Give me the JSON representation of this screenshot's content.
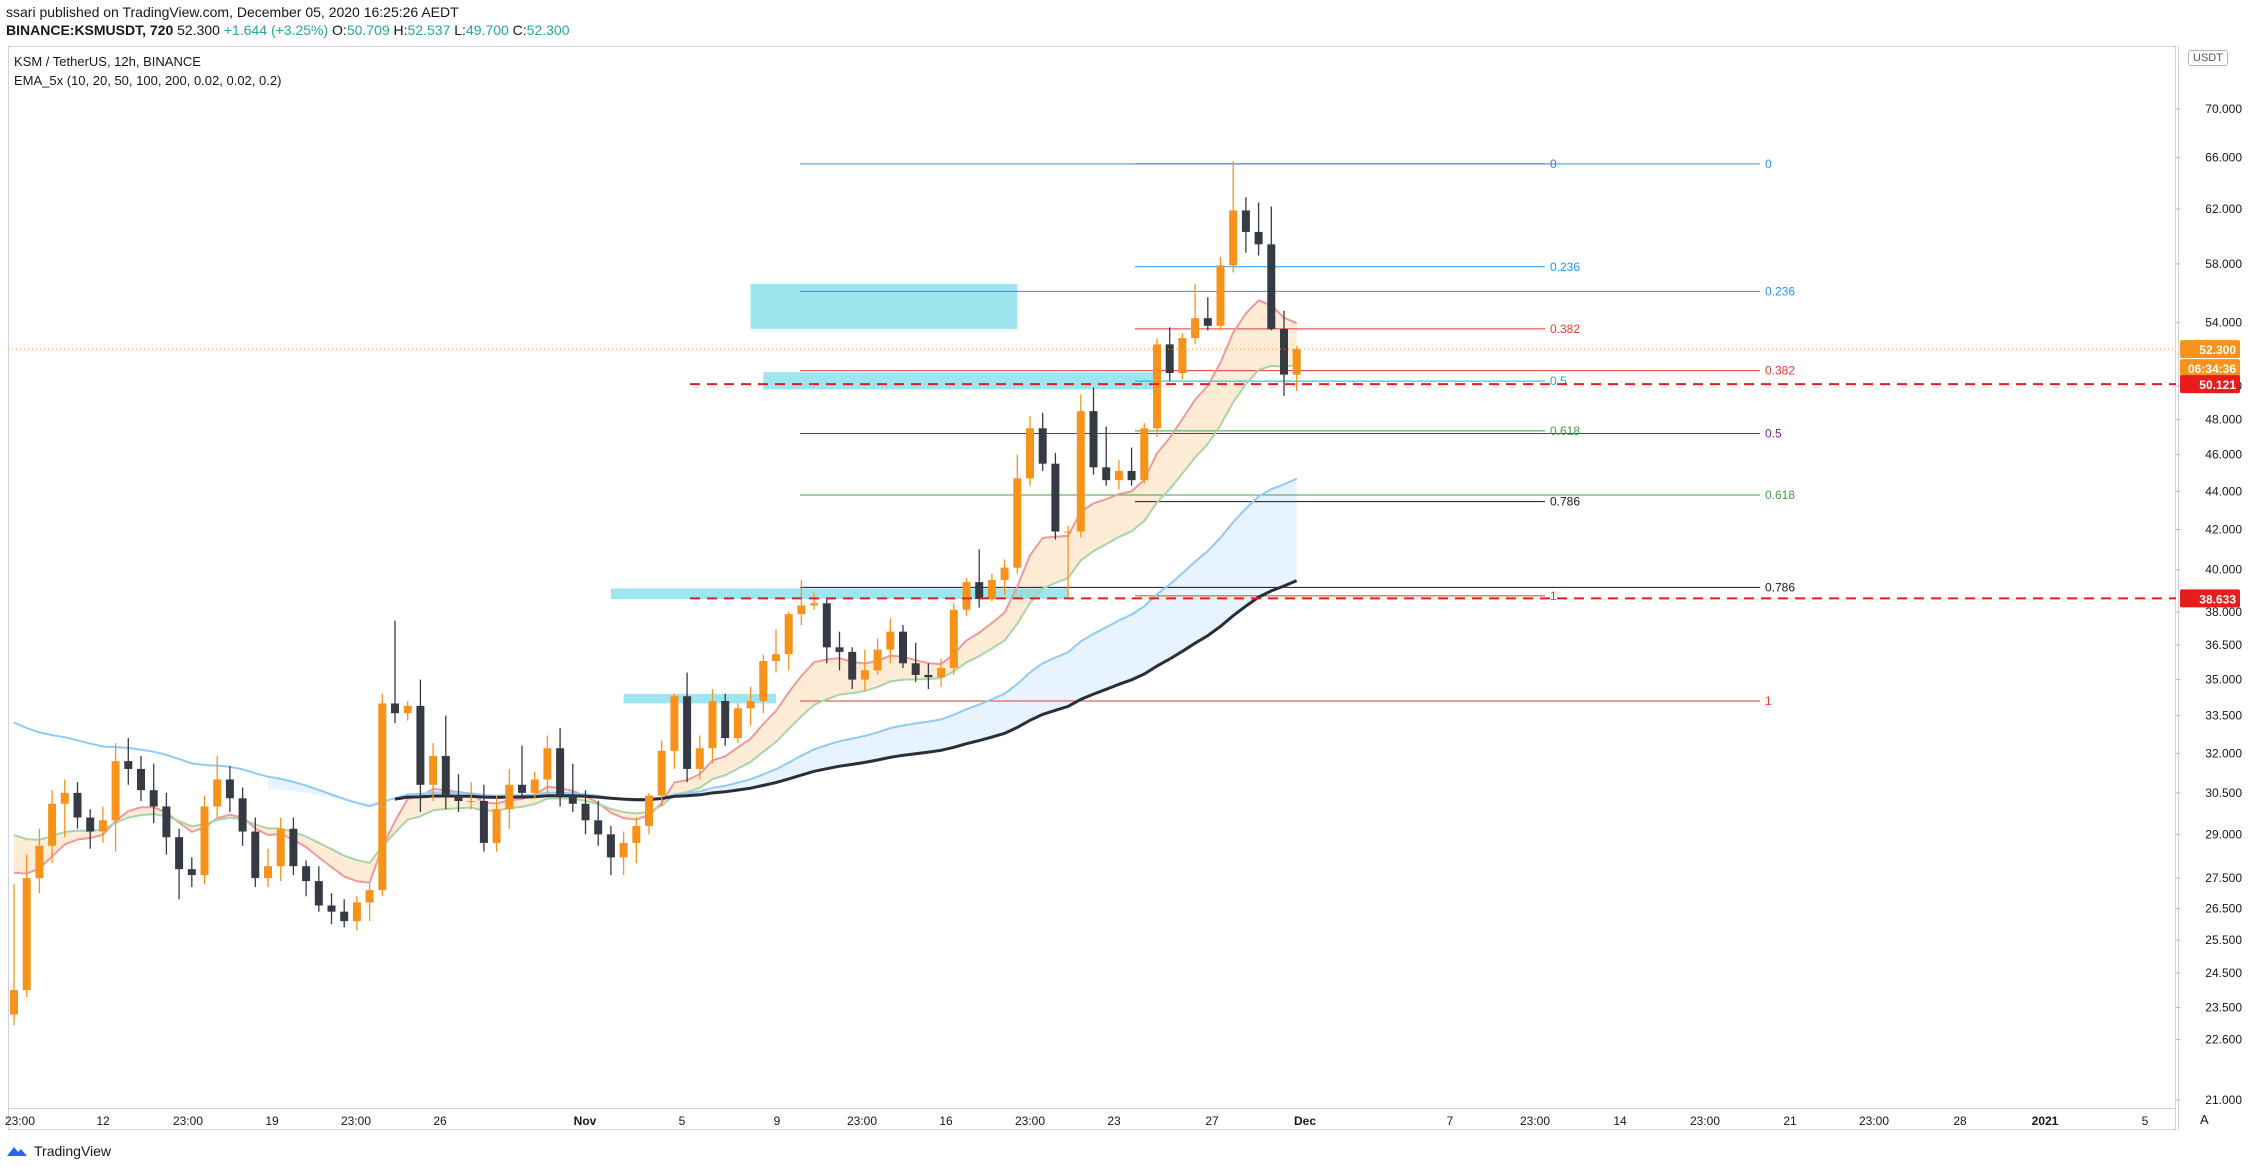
{
  "header": {
    "line1": "ssari published on TradingView.com, December 05, 2020 16:25:26 AEDT",
    "symbol": "BINANCE:KSMUSDT, 720",
    "last": "52.300",
    "change": "+1.644 (+3.25%)",
    "o_label": "O:",
    "o": "50.709",
    "h_label": "H:",
    "h": "52.537",
    "l_label": "L:",
    "l": "49.700",
    "c_label": "C:",
    "c": "52.300"
  },
  "legend": {
    "title": "KSM / TetherUS, 12h, BINANCE",
    "indicator": "EMA_5x (10, 20, 50, 100, 200, 0.02, 0.02, 0.2)"
  },
  "price_axis": {
    "currency": "USDT",
    "current_price": "52.300",
    "countdown": "06:34:36",
    "level_a": "50.121",
    "level_b": "38.633",
    "colors": {
      "current": "#f7931a",
      "red": "#e81c1c"
    }
  },
  "footer": {
    "brand": "TradingView"
  },
  "time_axis": {
    "reset_button": "A"
  },
  "chart_data": {
    "type": "candlestick",
    "title": "KSM / TetherUS, 12h, BINANCE",
    "y_scale": "log",
    "ylim": [
      21.0,
      72.0
    ],
    "y_ticks": [
      "21.000",
      "22.600",
      "23.500",
      "24.500",
      "25.500",
      "26.500",
      "27.500",
      "29.000",
      "30.500",
      "32.000",
      "33.500",
      "35.000",
      "36.500",
      "38.000",
      "40.000",
      "42.000",
      "44.000",
      "46.000",
      "48.000",
      "50.000",
      "54.000",
      "58.000",
      "62.000",
      "66.000",
      "70.000"
    ],
    "x_ticks": [
      "23:00",
      "12",
      "23:00",
      "19",
      "23:00",
      "26",
      "Nov",
      "5",
      "9",
      "23:00",
      "16",
      "23:00",
      "23",
      "27",
      "Dec",
      "7",
      "23:00",
      "14",
      "23:00",
      "21",
      "23:00",
      "28",
      "2021",
      "5"
    ],
    "candles": [
      [
        23.3,
        27.3,
        23.0,
        24.0
      ],
      [
        24.0,
        28.3,
        23.8,
        27.5
      ],
      [
        27.5,
        29.2,
        27.0,
        28.6
      ],
      [
        28.6,
        30.6,
        28.0,
        30.1
      ],
      [
        30.1,
        31.0,
        28.9,
        30.5
      ],
      [
        30.5,
        30.9,
        29.2,
        29.6
      ],
      [
        29.6,
        29.9,
        28.5,
        29.1
      ],
      [
        29.1,
        30.0,
        28.7,
        29.5
      ],
      [
        29.5,
        32.4,
        28.4,
        31.7
      ],
      [
        31.7,
        32.6,
        30.8,
        31.4
      ],
      [
        31.4,
        31.9,
        30.2,
        30.6
      ],
      [
        30.6,
        31.6,
        29.4,
        30.0
      ],
      [
        30.0,
        30.5,
        28.3,
        28.9
      ],
      [
        28.9,
        29.2,
        26.8,
        27.8
      ],
      [
        27.8,
        28.2,
        27.2,
        27.6
      ],
      [
        27.6,
        30.4,
        27.3,
        30.0
      ],
      [
        30.0,
        31.9,
        29.6,
        31.0
      ],
      [
        31.0,
        31.5,
        29.8,
        30.3
      ],
      [
        30.3,
        30.7,
        28.6,
        29.1
      ],
      [
        29.1,
        29.6,
        27.2,
        27.5
      ],
      [
        27.5,
        28.5,
        27.2,
        27.9
      ],
      [
        27.9,
        29.6,
        27.4,
        29.2
      ],
      [
        29.2,
        29.6,
        27.6,
        27.9
      ],
      [
        27.9,
        28.1,
        26.9,
        27.4
      ],
      [
        27.4,
        27.9,
        26.4,
        26.6
      ],
      [
        26.6,
        27.0,
        26.0,
        26.4
      ],
      [
        26.4,
        26.8,
        25.9,
        26.1
      ],
      [
        26.1,
        26.9,
        25.8,
        26.7
      ],
      [
        26.7,
        27.3,
        26.1,
        27.1
      ],
      [
        27.1,
        34.4,
        26.9,
        34.0
      ],
      [
        34.0,
        37.6,
        33.2,
        33.6
      ],
      [
        33.6,
        34.1,
        33.3,
        33.9
      ],
      [
        33.9,
        35.0,
        29.8,
        30.8
      ],
      [
        30.8,
        32.4,
        30.2,
        31.9
      ],
      [
        31.9,
        33.5,
        29.9,
        30.4
      ],
      [
        30.4,
        31.2,
        29.8,
        30.2
      ],
      [
        30.2,
        30.9,
        29.9,
        30.2
      ],
      [
        30.2,
        30.8,
        28.4,
        28.7
      ],
      [
        28.7,
        30.4,
        28.4,
        29.9
      ],
      [
        29.9,
        31.4,
        29.2,
        30.8
      ],
      [
        30.8,
        32.3,
        30.4,
        30.5
      ],
      [
        30.5,
        31.3,
        30.3,
        31.0
      ],
      [
        31.0,
        32.7,
        30.5,
        32.2
      ],
      [
        32.2,
        33.0,
        30.0,
        30.4
      ],
      [
        30.4,
        31.6,
        29.8,
        30.1
      ],
      [
        30.1,
        30.6,
        29.0,
        29.5
      ],
      [
        29.5,
        30.2,
        28.6,
        29.0
      ],
      [
        29.0,
        29.3,
        27.6,
        28.2
      ],
      [
        28.2,
        29.1,
        27.6,
        28.7
      ],
      [
        28.7,
        29.6,
        28.0,
        29.3
      ],
      [
        29.3,
        30.5,
        29.0,
        30.4
      ],
      [
        30.4,
        32.5,
        30.0,
        32.1
      ],
      [
        32.1,
        34.4,
        31.4,
        34.3
      ],
      [
        34.3,
        35.3,
        30.9,
        31.4
      ],
      [
        31.4,
        32.7,
        31.0,
        32.2
      ],
      [
        32.2,
        34.6,
        31.6,
        34.1
      ],
      [
        34.1,
        34.4,
        32.3,
        32.6
      ],
      [
        32.6,
        34.0,
        32.4,
        33.8
      ],
      [
        33.8,
        34.7,
        33.1,
        34.1
      ],
      [
        34.1,
        36.1,
        33.6,
        35.8
      ],
      [
        35.8,
        37.2,
        35.3,
        36.1
      ],
      [
        36.1,
        38.0,
        35.4,
        37.9
      ],
      [
        37.9,
        39.5,
        37.4,
        38.3
      ],
      [
        38.3,
        38.9,
        38.1,
        38.4
      ],
      [
        38.4,
        38.6,
        35.7,
        36.4
      ],
      [
        36.4,
        37.1,
        35.4,
        36.2
      ],
      [
        36.2,
        36.4,
        34.6,
        35.0
      ],
      [
        35.0,
        36.3,
        34.5,
        35.4
      ],
      [
        35.4,
        36.8,
        35.2,
        36.3
      ],
      [
        36.3,
        37.7,
        35.7,
        37.1
      ],
      [
        37.1,
        37.4,
        35.5,
        35.7
      ],
      [
        35.7,
        36.6,
        34.9,
        35.2
      ],
      [
        35.2,
        35.7,
        34.6,
        35.1
      ],
      [
        35.1,
        35.9,
        34.7,
        35.5
      ],
      [
        35.5,
        38.4,
        35.2,
        38.1
      ],
      [
        38.1,
        39.6,
        37.8,
        39.4
      ],
      [
        39.4,
        41.0,
        38.2,
        38.6
      ],
      [
        38.6,
        39.8,
        38.5,
        39.5
      ],
      [
        39.5,
        40.5,
        38.8,
        40.1
      ],
      [
        40.1,
        46.0,
        39.8,
        44.7
      ],
      [
        44.7,
        48.2,
        44.3,
        47.5
      ],
      [
        47.5,
        48.4,
        45.1,
        45.5
      ],
      [
        45.5,
        46.1,
        41.5,
        41.9
      ],
      [
        41.9,
        42.2,
        38.6,
        41.9
      ],
      [
        41.9,
        49.5,
        41.6,
        48.5
      ],
      [
        48.5,
        49.9,
        44.9,
        45.3
      ],
      [
        45.3,
        47.6,
        44.3,
        44.6
      ],
      [
        44.6,
        45.7,
        44.1,
        45.1
      ],
      [
        45.1,
        46.4,
        44.3,
        44.6
      ],
      [
        44.6,
        47.8,
        44.4,
        47.5
      ],
      [
        47.5,
        53.0,
        47.0,
        52.6
      ],
      [
        52.6,
        53.7,
        50.3,
        50.8
      ],
      [
        50.8,
        53.3,
        50.4,
        53.0
      ],
      [
        53.0,
        56.6,
        52.6,
        54.3
      ],
      [
        54.3,
        55.7,
        53.5,
        53.8
      ],
      [
        53.8,
        58.5,
        53.5,
        57.9
      ],
      [
        57.9,
        65.7,
        57.4,
        61.9
      ],
      [
        61.9,
        62.9,
        58.8,
        60.3
      ],
      [
        60.3,
        62.5,
        58.6,
        59.4
      ],
      [
        59.4,
        62.2,
        53.5,
        53.6
      ],
      [
        53.6,
        54.8,
        49.4,
        50.7
      ],
      [
        50.7,
        52.5,
        49.7,
        52.3
      ]
    ],
    "fib_right": [
      {
        "label": "0",
        "value": 65.5
      },
      {
        "label": "0.236",
        "value": 56.1
      },
      {
        "label": "0.382",
        "value": 50.95
      },
      {
        "label": "0.5",
        "value": 47.2
      },
      {
        "label": "0.618",
        "value": 43.8
      },
      {
        "label": "0.786",
        "value": 39.15
      },
      {
        "label": "1",
        "value": 34.1
      }
    ],
    "fib_left": [
      {
        "label": "0",
        "value": 65.5
      },
      {
        "label": "0.236",
        "value": 57.8
      },
      {
        "label": "0.382",
        "value": 53.6
      },
      {
        "label": "0.5",
        "value": 50.3
      },
      {
        "label": "0.618",
        "value": 47.35
      },
      {
        "label": "0.786",
        "value": 43.45
      },
      {
        "label": "1",
        "value": 38.75
      }
    ],
    "zones": [
      {
        "from": 53.6,
        "to": 56.6
      },
      {
        "from": 49.8,
        "to": 50.85
      },
      {
        "from": 38.6,
        "to": 39.1
      },
      {
        "from": 34.0,
        "to": 34.4
      }
    ],
    "levels": [
      {
        "value": 50.121
      },
      {
        "value": 38.633
      }
    ],
    "current": 52.3
  }
}
